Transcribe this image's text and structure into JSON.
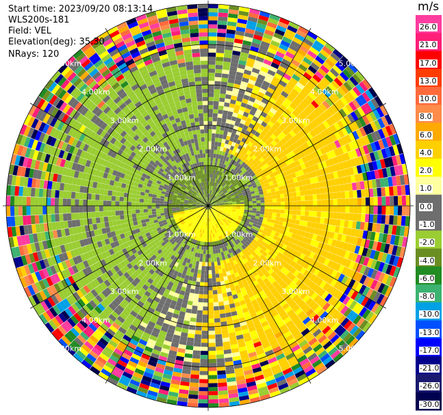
{
  "header": {
    "start_time": "Start time: 2023/09/20 08:13:14",
    "instrument": "WLS200s-181",
    "field": "Field: VEL",
    "elevation": "Elevation(deg): 35.30",
    "nrays": "NRays: 120"
  },
  "chart_data": {
    "type": "ppi",
    "field": "VEL",
    "units": "m/s",
    "n_rays": 120,
    "range_rings_km": [
      1.0,
      2.0,
      3.0,
      4.0,
      5.0
    ],
    "range_labels": [
      "1.00km",
      "2.00km",
      "3.00km",
      "4.00km",
      "5.00km"
    ],
    "colorbar": {
      "label": "m/s",
      "ticks": [
        "26.0",
        "21.0",
        "17.0",
        "13.0",
        "10.0",
        "8.0",
        "6.0",
        "4.0",
        "2.0",
        "1.0",
        "0.0",
        "-1.0",
        "-2.0",
        "-4.0",
        "-6.0",
        "-8.0",
        "-10.0",
        "-13.0",
        "-17.0",
        "-21.0",
        "-26.0",
        "-30.0"
      ],
      "colors": [
        "#ff3ca0",
        "#ff1e78",
        "#ff0000",
        "#ff3c00",
        "#ff6a3c",
        "#ff8c4a",
        "#ffaa00",
        "#ffd000",
        "#ffff00",
        "#ffffa0",
        "#6e6e6e",
        "#6e6e6e",
        "#9acd32",
        "#6b8e23",
        "#228b22",
        "#3cb371",
        "#00a0e6",
        "#0050ff",
        "#0000ff",
        "#00008b",
        "#191970",
        "#000050"
      ]
    },
    "description_layers": {
      "inner_positive_center_km": 0.5,
      "noise_start_km": 4.2
    }
  }
}
